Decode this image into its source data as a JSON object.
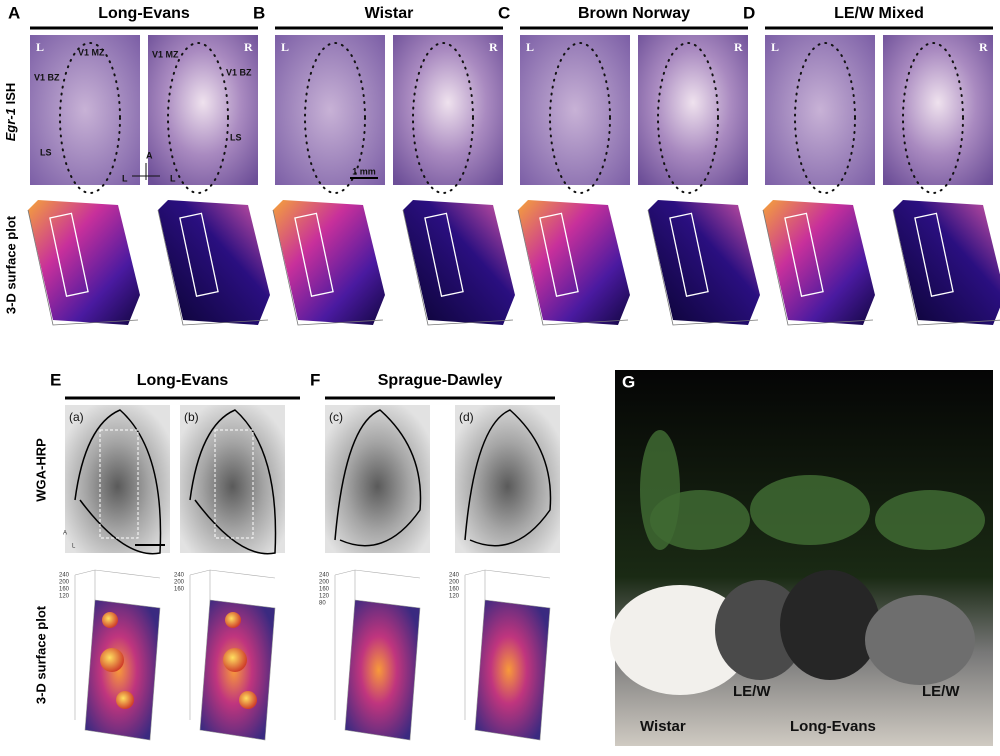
{
  "top_panels": [
    {
      "letter": "A",
      "title": "Long-Evans"
    },
    {
      "letter": "B",
      "title": "Wistar"
    },
    {
      "letter": "C",
      "title": "Brown Norway"
    },
    {
      "letter": "D",
      "title": "LE/W Mixed"
    }
  ],
  "row_labels": {
    "ish_gene": "Egr-1",
    "ish_method": "ISH",
    "surface_top": "3-D surface plot",
    "wga": "WGA-HRP",
    "surface_bottom": "3-D surface plot"
  },
  "side_marks": {
    "left": "L",
    "right": "R"
  },
  "panel_a_annotations": {
    "v1mz_left": "V1 MZ",
    "v1mz_right": "V1 MZ",
    "v1bz_left": "V1 BZ",
    "v1bz_right": "V1 BZ",
    "ls_left": "LS",
    "ls_right": "LS",
    "compass_a": "A",
    "compass_l1": "L",
    "compass_l2": "L"
  },
  "scale_bar": "1 mm",
  "bottom_panels": [
    {
      "letter": "E",
      "title": "Long-Evans",
      "subpanels": [
        "(a)",
        "(b)"
      ],
      "ticks": [
        [
          "240",
          "200",
          "160",
          "120"
        ],
        [
          "240",
          "200",
          "160"
        ]
      ]
    },
    {
      "letter": "F",
      "title": "Sprague-Dawley",
      "subpanels": [
        "(c)",
        "(d)"
      ],
      "ticks": [
        [
          "240",
          "200",
          "160",
          "120",
          "80"
        ],
        [
          "240",
          "200",
          "160",
          "120"
        ]
      ]
    }
  ],
  "compass_small": {
    "a": "A",
    "l": "L"
  },
  "photo": {
    "letter": "G",
    "labels": [
      "Wistar",
      "LE/W",
      "Long-Evans",
      "LE/W"
    ]
  }
}
